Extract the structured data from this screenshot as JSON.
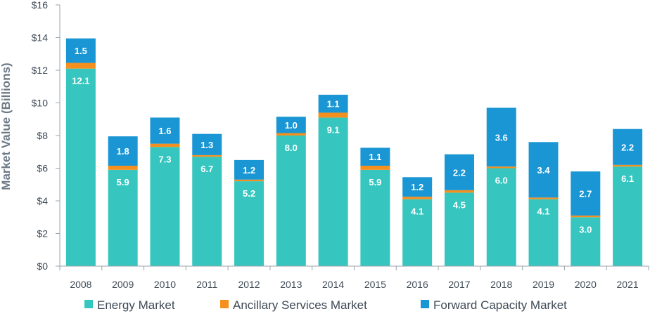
{
  "chart_data": {
    "type": "bar",
    "stacked": true,
    "title": "",
    "xlabel": "",
    "ylabel": "Market Value (Billions)",
    "ylim": [
      0,
      16
    ],
    "yticks": [
      "$0",
      "$2",
      "$4",
      "$6",
      "$8",
      "$10",
      "$12",
      "$14",
      "$16"
    ],
    "grid": false,
    "legend_position": "bottom",
    "categories": [
      "2008",
      "2009",
      "2010",
      "2011",
      "2012",
      "2013",
      "2014",
      "2015",
      "2016",
      "2017",
      "2018",
      "2019",
      "2020",
      "2021"
    ],
    "series": [
      {
        "name": "Energy Market",
        "color": "#36c6bf",
        "values": [
          12.1,
          5.9,
          7.3,
          6.7,
          5.2,
          8.0,
          9.1,
          5.9,
          4.1,
          4.5,
          6.0,
          4.1,
          3.0,
          6.1
        ],
        "labels": [
          "12.1",
          "5.9",
          "7.3",
          "6.7",
          "5.2",
          "8.0",
          "9.1",
          "5.9",
          "4.1",
          "4.5",
          "6.0",
          "4.1",
          "3.0",
          "6.1"
        ]
      },
      {
        "name": "Ancillary Services Market",
        "color": "#f5901e",
        "values": [
          0.35,
          0.25,
          0.2,
          0.1,
          0.1,
          0.15,
          0.3,
          0.25,
          0.15,
          0.15,
          0.1,
          0.1,
          0.1,
          0.1
        ],
        "labels": [
          "",
          "",
          "",
          "",
          "",
          "",
          "",
          "",
          "",
          "",
          "",
          "",
          "",
          ""
        ]
      },
      {
        "name": "Forward Capacity Market",
        "color": "#1b96d4",
        "values": [
          1.5,
          1.8,
          1.6,
          1.3,
          1.2,
          1.0,
          1.1,
          1.1,
          1.2,
          2.2,
          3.6,
          3.4,
          2.7,
          2.2
        ],
        "labels": [
          "1.5",
          "1.8",
          "1.6",
          "1.3",
          "1.2",
          "1.0",
          "1.1",
          "1.1",
          "1.2",
          "2.2",
          "3.6",
          "3.4",
          "2.7",
          "2.2"
        ]
      }
    ]
  }
}
